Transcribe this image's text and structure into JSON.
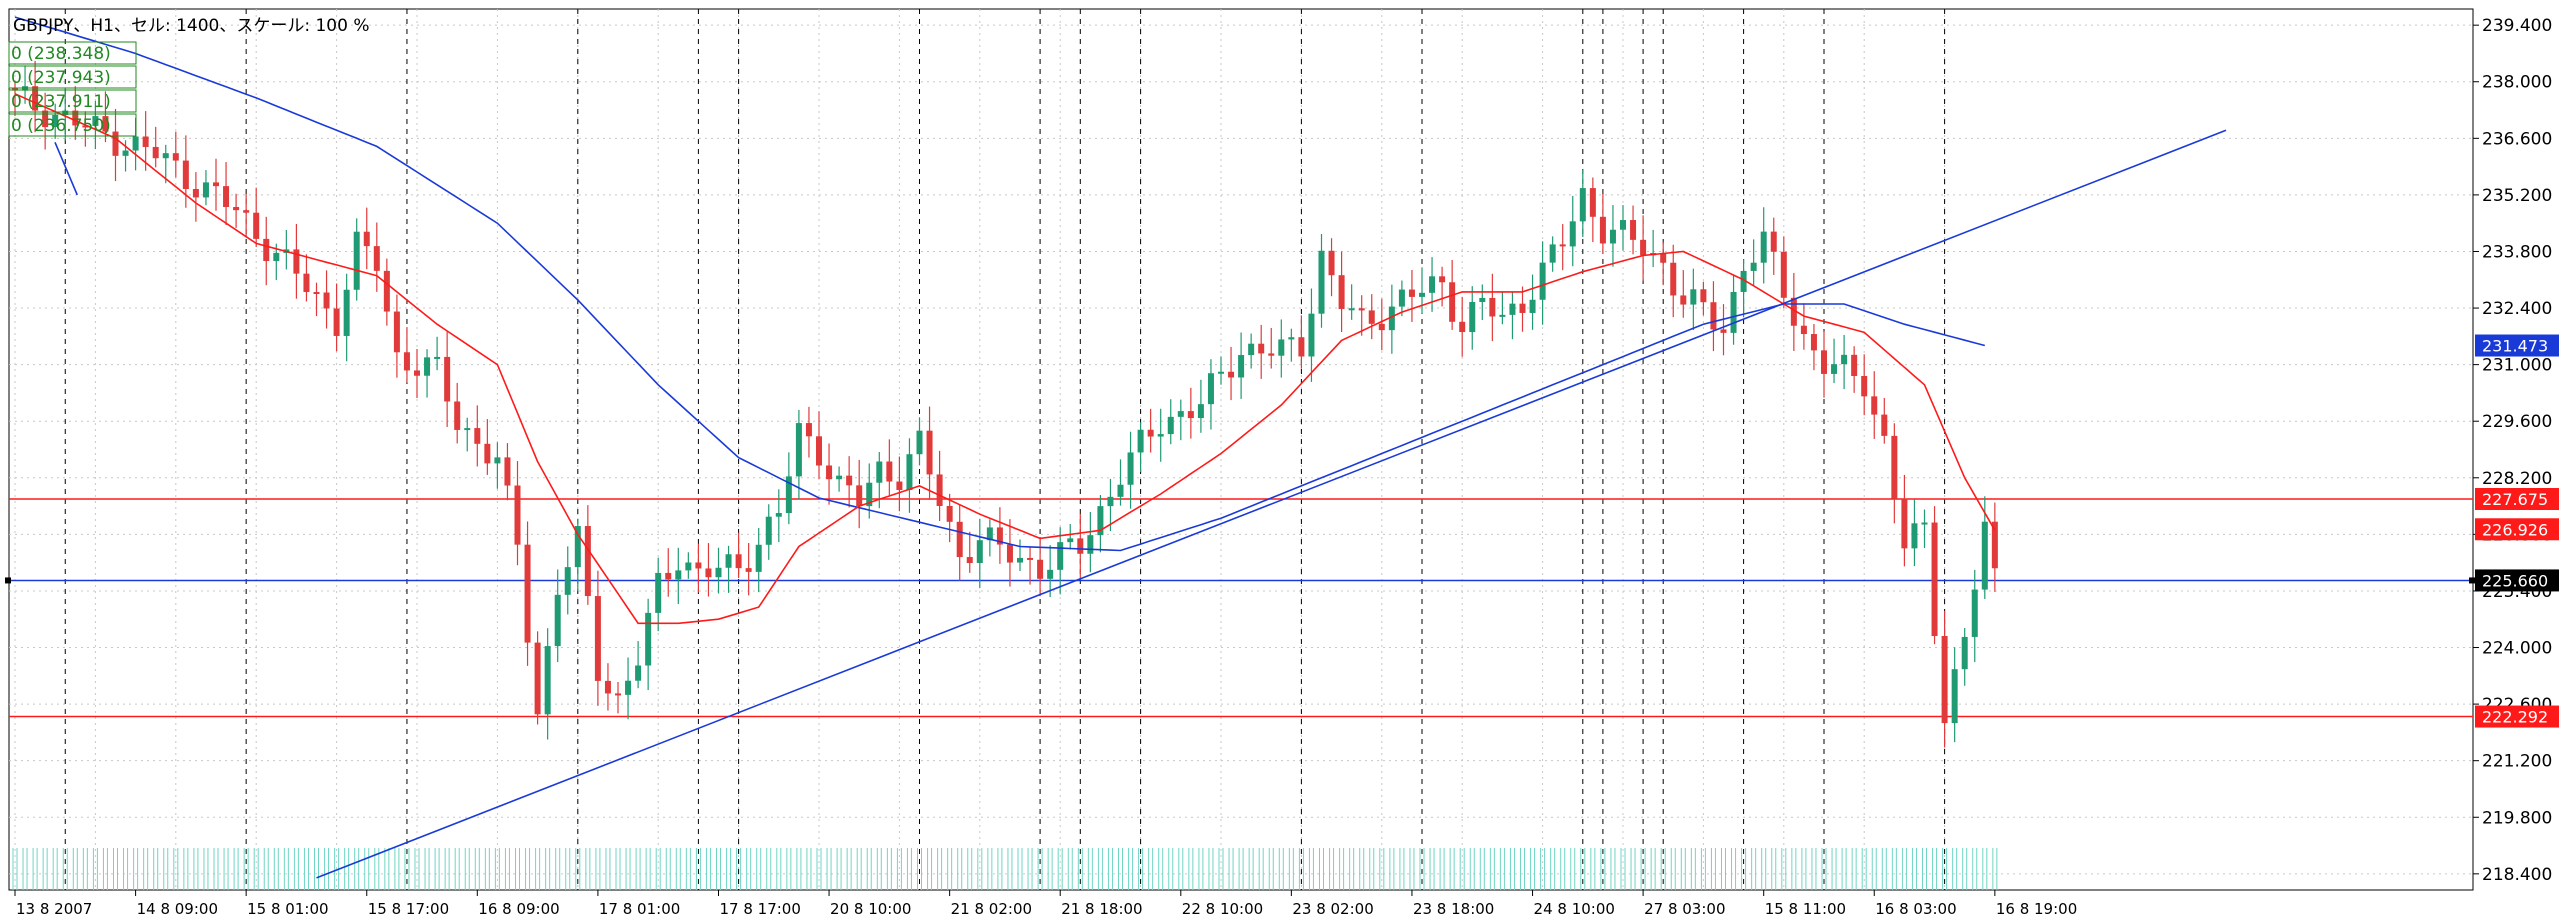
{
  "chart_title": "GBPJPY、H1、セル: 1400、スケール: 100 %",
  "colors": {
    "background": "#ffffff",
    "bull_candle": "#1f9a72",
    "bear_candle": "#e03a3a",
    "ma_fast": "#ff1a1a",
    "ma_slow": "#1a3ad8",
    "trendline": "#1a3ad8",
    "hline": "#ff1a1a",
    "current_price_line": "#1a3ad8",
    "volume": "#6fd6c4",
    "label_red": "#ff1a1a",
    "label_blue": "#1a3ad8",
    "label_black": "#000000",
    "legend_green": "#1f8a1f"
  },
  "legend_box": [
    "0 (238.348)",
    "0 (237.943)",
    "0 (237.911)",
    "0 (236.750)"
  ],
  "chart_data": {
    "type": "candlestick",
    "symbol": "GBPJPY",
    "timeframe": "H1",
    "ylim": [
      218.0,
      239.8
    ],
    "y_ticks": [
      "239.400",
      "238.000",
      "236.600",
      "235.200",
      "233.800",
      "232.400",
      "231.000",
      "229.600",
      "228.200",
      "226.800",
      "225.400",
      "224.000",
      "222.600",
      "221.200",
      "219.800",
      "218.400"
    ],
    "x_ticks": [
      "13 8 2007",
      "14 8 09:00",
      "15 8 01:00",
      "15 8 17:00",
      "16 8 09:00",
      "17 8 01:00",
      "17 8 17:00",
      "20 8 10:00",
      "21 8 02:00",
      "21 8 18:00",
      "22 8 10:00",
      "23 8 02:00",
      "23 8 18:00",
      "24 8 10:00",
      "27 8 03:00",
      "15 8 11:00",
      "16 8 03:00",
      "16 8 19:00"
    ],
    "bar_count": 198,
    "price_path": [
      [
        0,
        237.6
      ],
      [
        6,
        237.0
      ],
      [
        14,
        236.2
      ],
      [
        22,
        234.8
      ],
      [
        28,
        233.2
      ],
      [
        32,
        232.1
      ],
      [
        34,
        233.9
      ],
      [
        36,
        233.5
      ],
      [
        38,
        231.2
      ],
      [
        42,
        230.8
      ],
      [
        44,
        229.6
      ],
      [
        48,
        228.6
      ],
      [
        50,
        226.5
      ],
      [
        52,
        222.4
      ],
      [
        54,
        225.5
      ],
      [
        56,
        226.6
      ],
      [
        58,
        223.5
      ],
      [
        60,
        222.7
      ],
      [
        62,
        223.7
      ],
      [
        64,
        225.5
      ],
      [
        66,
        226.3
      ],
      [
        68,
        225.8
      ],
      [
        72,
        226.0
      ],
      [
        76,
        227.3
      ],
      [
        78,
        229.3
      ],
      [
        80,
        228.9
      ],
      [
        82,
        228.0
      ],
      [
        84,
        227.6
      ],
      [
        86,
        228.4
      ],
      [
        88,
        228.3
      ],
      [
        90,
        229.0
      ],
      [
        92,
        227.6
      ],
      [
        94,
        226.3
      ],
      [
        96,
        226.7
      ],
      [
        98,
        226.4
      ],
      [
        102,
        226.0
      ],
      [
        106,
        226.5
      ],
      [
        110,
        228.3
      ],
      [
        114,
        229.6
      ],
      [
        118,
        230.0
      ],
      [
        122,
        231.4
      ],
      [
        126,
        231.3
      ],
      [
        128,
        231.5
      ],
      [
        130,
        233.7
      ],
      [
        132,
        232.5
      ],
      [
        134,
        232.0
      ],
      [
        138,
        232.6
      ],
      [
        142,
        233.0
      ],
      [
        144,
        232.0
      ],
      [
        146,
        232.5
      ],
      [
        148,
        232.1
      ],
      [
        150,
        232.6
      ],
      [
        152,
        233.3
      ],
      [
        154,
        234.0
      ],
      [
        156,
        235.2
      ],
      [
        158,
        234.4
      ],
      [
        162,
        233.9
      ],
      [
        164,
        233.5
      ],
      [
        166,
        232.6
      ],
      [
        168,
        232.3
      ],
      [
        170,
        231.9
      ],
      [
        172,
        233.5
      ],
      [
        174,
        234.0
      ],
      [
        176,
        232.8
      ],
      [
        178,
        231.7
      ],
      [
        180,
        231.0
      ],
      [
        184,
        230.6
      ],
      [
        186,
        229.1
      ],
      [
        188,
        226.5
      ],
      [
        190,
        226.9
      ],
      [
        192,
        222.4
      ],
      [
        194,
        224.2
      ],
      [
        196,
        226.9
      ],
      [
        197,
        225.66
      ]
    ],
    "fast_ma_path": [
      [
        0,
        237.7
      ],
      [
        10,
        236.6
      ],
      [
        18,
        235.0
      ],
      [
        24,
        234.0
      ],
      [
        30,
        233.6
      ],
      [
        36,
        233.2
      ],
      [
        42,
        232.0
      ],
      [
        48,
        231.0
      ],
      [
        52,
        228.6
      ],
      [
        56,
        226.8
      ],
      [
        62,
        224.6
      ],
      [
        66,
        224.6
      ],
      [
        70,
        224.7
      ],
      [
        74,
        225.0
      ],
      [
        78,
        226.5
      ],
      [
        84,
        227.5
      ],
      [
        90,
        228.0
      ],
      [
        96,
        227.3
      ],
      [
        102,
        226.7
      ],
      [
        108,
        226.9
      ],
      [
        114,
        227.8
      ],
      [
        120,
        228.8
      ],
      [
        126,
        230.0
      ],
      [
        132,
        231.6
      ],
      [
        138,
        232.3
      ],
      [
        144,
        232.8
      ],
      [
        150,
        232.8
      ],
      [
        156,
        233.3
      ],
      [
        162,
        233.7
      ],
      [
        166,
        233.8
      ],
      [
        172,
        233.1
      ],
      [
        178,
        232.2
      ],
      [
        184,
        231.8
      ],
      [
        190,
        230.5
      ],
      [
        194,
        228.2
      ],
      [
        197,
        226.9
      ]
    ],
    "slow_ma_path": [
      [
        0,
        239.6
      ],
      [
        12,
        238.7
      ],
      [
        24,
        237.6
      ],
      [
        36,
        236.4
      ],
      [
        48,
        234.5
      ],
      [
        56,
        232.6
      ],
      [
        64,
        230.5
      ],
      [
        72,
        228.7
      ],
      [
        80,
        227.7
      ],
      [
        90,
        227.1
      ],
      [
        100,
        226.5
      ],
      [
        110,
        226.4
      ],
      [
        120,
        227.2
      ],
      [
        130,
        228.2
      ],
      [
        140,
        229.2
      ],
      [
        150,
        230.2
      ],
      [
        160,
        231.2
      ],
      [
        168,
        232.0
      ],
      [
        176,
        232.5
      ],
      [
        182,
        232.5
      ],
      [
        188,
        232.0
      ],
      [
        196,
        231.473
      ]
    ],
    "trendline_path": [
      [
        30,
        218.3
      ],
      [
        220,
        236.8
      ]
    ],
    "steep_line_path": [
      [
        0,
        236.5
      ],
      [
        5,
        235.2
      ]
    ],
    "horizontal_lines": [
      {
        "value": 227.675,
        "label": "227.675",
        "color": "#ff1a1a"
      },
      {
        "value": 222.292,
        "label": "222.292",
        "color": "#ff1a1a"
      }
    ],
    "price_labels": [
      {
        "value": 231.473,
        "label": "231.473",
        "color": "#1a3ad8"
      },
      {
        "value": 226.926,
        "label": "226.926",
        "color": "#ff1a1a"
      },
      {
        "value": 225.66,
        "label": "225.660",
        "color": "#000000"
      }
    ],
    "current_price": 225.66,
    "period_separators": [
      5,
      23,
      39,
      56,
      68,
      72,
      90,
      102,
      106,
      112,
      128,
      140,
      156,
      158,
      162,
      164,
      172,
      180,
      192
    ]
  }
}
